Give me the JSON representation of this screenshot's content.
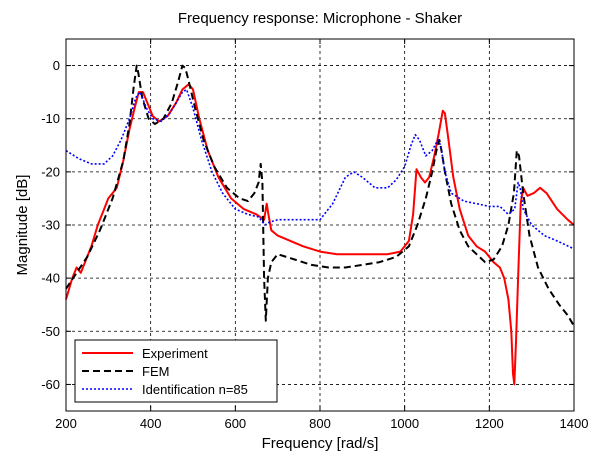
{
  "chart_data": {
    "type": "line",
    "title": "Frequency response: Microphone - Shaker",
    "xlabel": "Frequency [rad/s]",
    "ylabel": "Magnitude  [dB]",
    "xlim": [
      200,
      1400
    ],
    "ylim": [
      -65,
      5
    ],
    "x_ticks": [
      200,
      400,
      600,
      800,
      1000,
      1200,
      1400
    ],
    "y_ticks": [
      0,
      -10,
      -20,
      -30,
      -40,
      -50,
      -60
    ],
    "grid": true,
    "legend_position": "bottom-left",
    "series": [
      {
        "name": "Experiment",
        "color": "#ff0000",
        "style": "solid",
        "points": [
          [
            200,
            -44
          ],
          [
            215,
            -40
          ],
          [
            225,
            -38
          ],
          [
            235,
            -39
          ],
          [
            245,
            -37
          ],
          [
            260,
            -34
          ],
          [
            275,
            -30
          ],
          [
            290,
            -27
          ],
          [
            300,
            -25
          ],
          [
            310,
            -24
          ],
          [
            320,
            -23
          ],
          [
            335,
            -18
          ],
          [
            350,
            -12
          ],
          [
            362,
            -8
          ],
          [
            372,
            -5
          ],
          [
            382,
            -5
          ],
          [
            392,
            -7
          ],
          [
            405,
            -9.5
          ],
          [
            420,
            -10.5
          ],
          [
            440,
            -9.5
          ],
          [
            460,
            -7
          ],
          [
            475,
            -4.5
          ],
          [
            490,
            -3.5
          ],
          [
            500,
            -4.5
          ],
          [
            515,
            -10
          ],
          [
            535,
            -16
          ],
          [
            560,
            -21
          ],
          [
            590,
            -25
          ],
          [
            620,
            -27
          ],
          [
            650,
            -28
          ],
          [
            668,
            -29
          ],
          [
            674,
            -26
          ],
          [
            678,
            -28
          ],
          [
            685,
            -31
          ],
          [
            700,
            -32
          ],
          [
            730,
            -33
          ],
          [
            760,
            -34
          ],
          [
            800,
            -35
          ],
          [
            840,
            -35.5
          ],
          [
            880,
            -35.5
          ],
          [
            920,
            -35.5
          ],
          [
            960,
            -35.5
          ],
          [
            990,
            -35
          ],
          [
            1010,
            -33
          ],
          [
            1020,
            -28
          ],
          [
            1028,
            -19.5
          ],
          [
            1038,
            -21
          ],
          [
            1048,
            -22
          ],
          [
            1058,
            -21
          ],
          [
            1070,
            -17
          ],
          [
            1080,
            -13
          ],
          [
            1090,
            -8.5
          ],
          [
            1095,
            -9
          ],
          [
            1102,
            -13
          ],
          [
            1115,
            -21
          ],
          [
            1130,
            -27
          ],
          [
            1150,
            -32
          ],
          [
            1170,
            -34
          ],
          [
            1190,
            -35
          ],
          [
            1210,
            -37
          ],
          [
            1225,
            -38
          ],
          [
            1235,
            -40
          ],
          [
            1245,
            -44
          ],
          [
            1252,
            -50
          ],
          [
            1256,
            -58
          ],
          [
            1259,
            -60
          ],
          [
            1263,
            -52
          ],
          [
            1268,
            -40
          ],
          [
            1274,
            -26
          ],
          [
            1280,
            -23
          ],
          [
            1290,
            -24.5
          ],
          [
            1305,
            -24
          ],
          [
            1320,
            -23
          ],
          [
            1335,
            -24
          ],
          [
            1360,
            -27
          ],
          [
            1385,
            -29
          ],
          [
            1400,
            -30
          ]
        ]
      },
      {
        "name": "FEM",
        "color": "#000000",
        "style": "dashed",
        "points": [
          [
            200,
            -42
          ],
          [
            225,
            -39
          ],
          [
            250,
            -36
          ],
          [
            280,
            -31
          ],
          [
            310,
            -25
          ],
          [
            335,
            -18
          ],
          [
            350,
            -11
          ],
          [
            360,
            -4
          ],
          [
            367,
            0
          ],
          [
            371,
            -1.5
          ],
          [
            380,
            -6
          ],
          [
            395,
            -10
          ],
          [
            410,
            -11
          ],
          [
            430,
            -10
          ],
          [
            450,
            -7
          ],
          [
            465,
            -3
          ],
          [
            475,
            0
          ],
          [
            482,
            -0.5
          ],
          [
            490,
            -3
          ],
          [
            505,
            -8
          ],
          [
            525,
            -14
          ],
          [
            550,
            -19
          ],
          [
            580,
            -23
          ],
          [
            610,
            -25
          ],
          [
            630,
            -25.5
          ],
          [
            645,
            -24
          ],
          [
            655,
            -22
          ],
          [
            660,
            -18.5
          ],
          [
            664,
            -22
          ],
          [
            668,
            -40
          ],
          [
            672,
            -48
          ],
          [
            677,
            -40
          ],
          [
            685,
            -37
          ],
          [
            700,
            -35.5
          ],
          [
            740,
            -36.5
          ],
          [
            780,
            -37.5
          ],
          [
            820,
            -38
          ],
          [
            860,
            -38
          ],
          [
            900,
            -37.5
          ],
          [
            940,
            -37
          ],
          [
            980,
            -36
          ],
          [
            1010,
            -34
          ],
          [
            1030,
            -30
          ],
          [
            1050,
            -25
          ],
          [
            1065,
            -20
          ],
          [
            1075,
            -16
          ],
          [
            1082,
            -14
          ],
          [
            1087,
            -16
          ],
          [
            1095,
            -20
          ],
          [
            1110,
            -26
          ],
          [
            1130,
            -31
          ],
          [
            1150,
            -34
          ],
          [
            1170,
            -35.5
          ],
          [
            1190,
            -37
          ],
          [
            1210,
            -36.5
          ],
          [
            1230,
            -34
          ],
          [
            1245,
            -30
          ],
          [
            1258,
            -24
          ],
          [
            1265,
            -16
          ],
          [
            1270,
            -17
          ],
          [
            1280,
            -24
          ],
          [
            1295,
            -32
          ],
          [
            1315,
            -38
          ],
          [
            1340,
            -42
          ],
          [
            1365,
            -45
          ],
          [
            1385,
            -47
          ],
          [
            1400,
            -49
          ]
        ]
      },
      {
        "name": "Identification n=85",
        "color": "#0000ff",
        "style": "dotted",
        "points": [
          [
            200,
            -16
          ],
          [
            230,
            -17.5
          ],
          [
            260,
            -18.5
          ],
          [
            290,
            -18.5
          ],
          [
            310,
            -17
          ],
          [
            330,
            -14
          ],
          [
            350,
            -10
          ],
          [
            365,
            -6
          ],
          [
            375,
            -5
          ],
          [
            390,
            -8
          ],
          [
            405,
            -10
          ],
          [
            425,
            -10.5
          ],
          [
            445,
            -9
          ],
          [
            460,
            -7
          ],
          [
            475,
            -5
          ],
          [
            485,
            -4.5
          ],
          [
            500,
            -8
          ],
          [
            520,
            -14
          ],
          [
            545,
            -20
          ],
          [
            570,
            -24
          ],
          [
            600,
            -27
          ],
          [
            630,
            -28
          ],
          [
            655,
            -28.5
          ],
          [
            670,
            -30
          ],
          [
            680,
            -29.5
          ],
          [
            700,
            -29
          ],
          [
            760,
            -29
          ],
          [
            800,
            -29
          ],
          [
            830,
            -26
          ],
          [
            860,
            -21
          ],
          [
            880,
            -20
          ],
          [
            900,
            -21
          ],
          [
            930,
            -23
          ],
          [
            960,
            -23
          ],
          [
            980,
            -21.5
          ],
          [
            1000,
            -19
          ],
          [
            1015,
            -15
          ],
          [
            1025,
            -13
          ],
          [
            1035,
            -14
          ],
          [
            1050,
            -17
          ],
          [
            1065,
            -16
          ],
          [
            1078,
            -14
          ],
          [
            1085,
            -15
          ],
          [
            1095,
            -20
          ],
          [
            1110,
            -24
          ],
          [
            1140,
            -25.5
          ],
          [
            1170,
            -26
          ],
          [
            1200,
            -26.5
          ],
          [
            1225,
            -26.5
          ],
          [
            1245,
            -28
          ],
          [
            1260,
            -27
          ],
          [
            1268,
            -22
          ],
          [
            1273,
            -23
          ],
          [
            1280,
            -27
          ],
          [
            1300,
            -30
          ],
          [
            1330,
            -32
          ],
          [
            1360,
            -33
          ],
          [
            1400,
            -34.5
          ]
        ]
      }
    ]
  }
}
